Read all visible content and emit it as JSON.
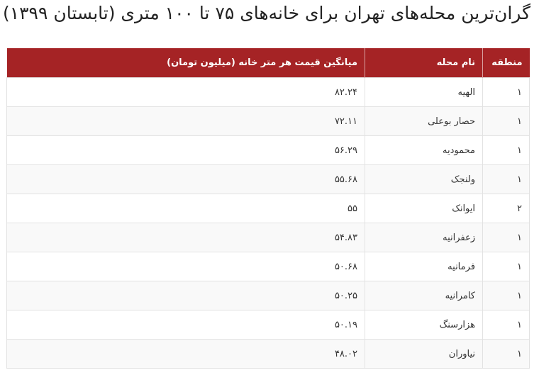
{
  "title": "گران‌ترین محله‌های تهران برای خانه‌های ۷۵ تا ۱۰۰ متری (تابستان ۱۳۹۹)",
  "colors": {
    "header_bg": "#a52325",
    "header_text": "#ffffff",
    "row_alt": "#f9f9f9"
  },
  "table": {
    "headers": [
      "منطقه",
      "نام محله",
      "میانگین قیمت هر متر خانه (میلیون تومان)"
    ],
    "rows": [
      [
        "۱",
        "الهیه",
        "۸۲.۲۴"
      ],
      [
        "۱",
        "حصار بوعلی",
        "۷۲.۱۱"
      ],
      [
        "۱",
        "محمودیه",
        "۵۶.۲۹"
      ],
      [
        "۱",
        "ولنجک",
        "۵۵.۶۸"
      ],
      [
        "۲",
        "ایوانک",
        "۵۵"
      ],
      [
        "۱",
        "زعفرانیه",
        "۵۴.۸۳"
      ],
      [
        "۱",
        "فرمانیه",
        "۵۰.۶۸"
      ],
      [
        "۱",
        "کامرانیه",
        "۵۰.۲۵"
      ],
      [
        "۱",
        "هزارسنگ",
        "۵۰.۱۹"
      ],
      [
        "۱",
        "نیاوران",
        "۴۸.۰۲"
      ]
    ]
  }
}
